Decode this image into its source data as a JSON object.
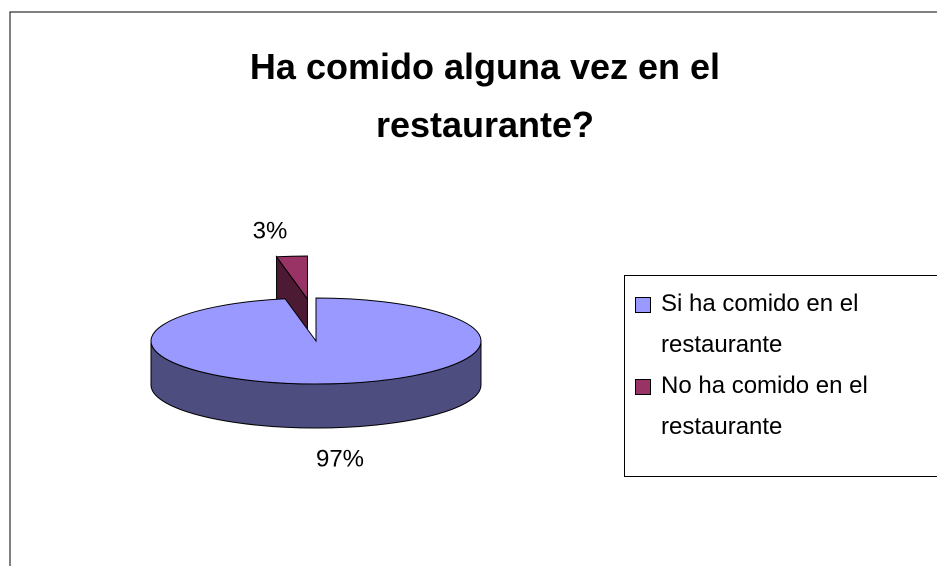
{
  "chart_data": {
    "type": "pie",
    "title": "Ha comido alguna vez en el restaurante?",
    "categories": [
      "Si ha comido en el restaurante",
      "No ha comido en el restaurante"
    ],
    "values": [
      97,
      3
    ],
    "value_labels": [
      "97%",
      "3%"
    ],
    "colors": [
      "#9999ff",
      "#993366"
    ],
    "legend": "right"
  }
}
